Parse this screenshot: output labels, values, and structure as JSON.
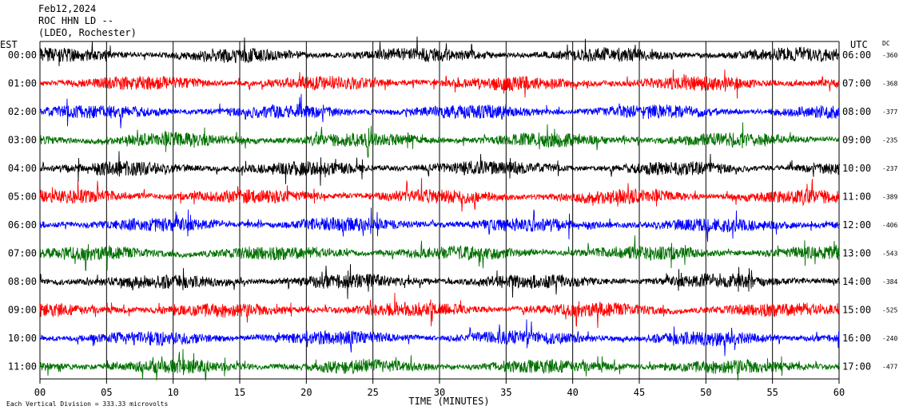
{
  "header": {
    "date": "Feb12,2024",
    "station": "ROC HHN LD --",
    "network": "(LDEO, Rochester)"
  },
  "chart_data": {
    "type": "line",
    "subtype": "helicorder",
    "left_axis_label": "EST",
    "right_axis_label": "UTC",
    "dc_label": "DC",
    "xlabel": "TIME (MINUTES)",
    "x_ticks": [
      "00",
      "05",
      "10",
      "15",
      "20",
      "25",
      "30",
      "35",
      "40",
      "45",
      "50",
      "55",
      "60"
    ],
    "xlim": [
      0,
      60
    ],
    "scale_note": "Each Vertical Division =  333.33 microvolts",
    "trace_colors": [
      "#000000",
      "#ff0000",
      "#0000ff",
      "#007000"
    ],
    "grid": true,
    "rows": [
      {
        "est": "00:00",
        "utc": "06:00",
        "dc": "-360",
        "color": "#000000"
      },
      {
        "est": "01:00",
        "utc": "07:00",
        "dc": "-368",
        "color": "#ff0000"
      },
      {
        "est": "02:00",
        "utc": "08:00",
        "dc": "-377",
        "color": "#0000ff"
      },
      {
        "est": "03:00",
        "utc": "09:00",
        "dc": "-235",
        "color": "#007000"
      },
      {
        "est": "04:00",
        "utc": "10:00",
        "dc": "-237",
        "color": "#000000"
      },
      {
        "est": "05:00",
        "utc": "11:00",
        "dc": "-389",
        "color": "#ff0000"
      },
      {
        "est": "06:00",
        "utc": "12:00",
        "dc": "-406",
        "color": "#0000ff"
      },
      {
        "est": "07:00",
        "utc": "13:00",
        "dc": "-543",
        "color": "#007000"
      },
      {
        "est": "08:00",
        "utc": "14:00",
        "dc": "-384",
        "color": "#000000"
      },
      {
        "est": "09:00",
        "utc": "15:00",
        "dc": "-525",
        "color": "#ff0000"
      },
      {
        "est": "10:00",
        "utc": "16:00",
        "dc": "-240",
        "color": "#0000ff"
      },
      {
        "est": "11:00",
        "utc": "17:00",
        "dc": "-477",
        "color": "#007000"
      }
    ]
  }
}
